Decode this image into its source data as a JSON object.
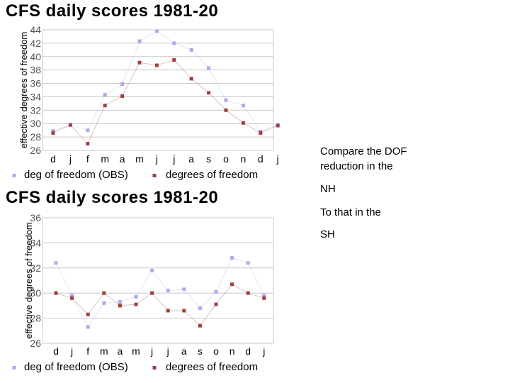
{
  "colors": {
    "obs": "#aaaaee",
    "model": "#a04040",
    "grid": "#c8c8c8"
  },
  "chart_data": [
    {
      "type": "line",
      "title": "CFS daily scores 1981-20",
      "ylabel": "effective degrees of freedom",
      "xlabel": "",
      "categories": [
        "d",
        "j",
        "f",
        "m",
        "a",
        "m",
        "j",
        "j",
        "a",
        "s",
        "o",
        "n",
        "d",
        "j"
      ],
      "ylim": [
        26,
        44
      ],
      "yticks": [
        "26",
        "28",
        "30",
        "32",
        "34",
        "36",
        "38",
        "40",
        "42",
        "44"
      ],
      "series": [
        {
          "name": "deg of freedom (OBS)",
          "values": [
            28.9,
            29.8,
            29.0,
            34.3,
            35.9,
            42.3,
            43.8,
            42.0,
            41.0,
            38.3,
            33.5,
            32.7,
            28.8,
            29.8
          ]
        },
        {
          "name": "degrees of freedom",
          "values": [
            28.6,
            29.8,
            27.0,
            32.7,
            34.1,
            39.1,
            38.7,
            39.5,
            36.7,
            34.6,
            32.0,
            30.1,
            28.6,
            29.7
          ]
        }
      ],
      "legend_position": "bottom"
    },
    {
      "type": "line",
      "title": "CFS daily scores 1981-20",
      "ylabel": "effective degrees of freedom",
      "xlabel": "",
      "categories": [
        "d",
        "j",
        "f",
        "m",
        "a",
        "m",
        "j",
        "j",
        "a",
        "s",
        "o",
        "n",
        "d",
        "j"
      ],
      "ylim": [
        26,
        36
      ],
      "yticks": [
        "26",
        "28",
        "30",
        "32",
        "34",
        "36"
      ],
      "series": [
        {
          "name": "deg of freedom (OBS)",
          "values": [
            32.4,
            29.8,
            27.3,
            29.2,
            29.3,
            29.7,
            31.8,
            30.2,
            30.3,
            28.8,
            30.1,
            32.8,
            32.4,
            29.8
          ]
        },
        {
          "name": "degrees of freedom",
          "values": [
            30.0,
            29.6,
            28.3,
            30.0,
            29.0,
            29.1,
            30.0,
            28.6,
            28.6,
            27.4,
            29.1,
            30.7,
            30.0,
            29.6
          ]
        }
      ],
      "legend_position": "bottom"
    }
  ],
  "side_text": {
    "line1": "Compare the DOF",
    "line2": "reduction in the",
    "line3": "NH",
    "line4": "To that in the",
    "line5": "SH"
  }
}
